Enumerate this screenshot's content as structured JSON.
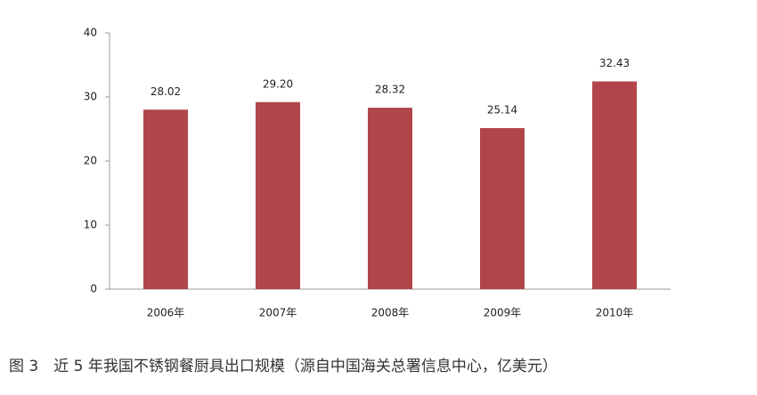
{
  "chart_data": {
    "type": "bar",
    "title": "图 3　近 5 年我国不锈钢餐厨具出口规模（源自中国海关总署信息中心，亿美元）",
    "categories": [
      "2006年",
      "2007年",
      "2008年",
      "2009年",
      "2010年"
    ],
    "values": [
      28.02,
      29.2,
      28.32,
      25.14,
      32.43
    ],
    "value_labels": [
      "28.02",
      "29.20",
      "28.32",
      "25.14",
      "32.43"
    ],
    "color": "#b0464a",
    "ylim": [
      0,
      40
    ],
    "yticks": [
      0,
      10,
      20,
      30,
      40
    ],
    "grid": false
  }
}
